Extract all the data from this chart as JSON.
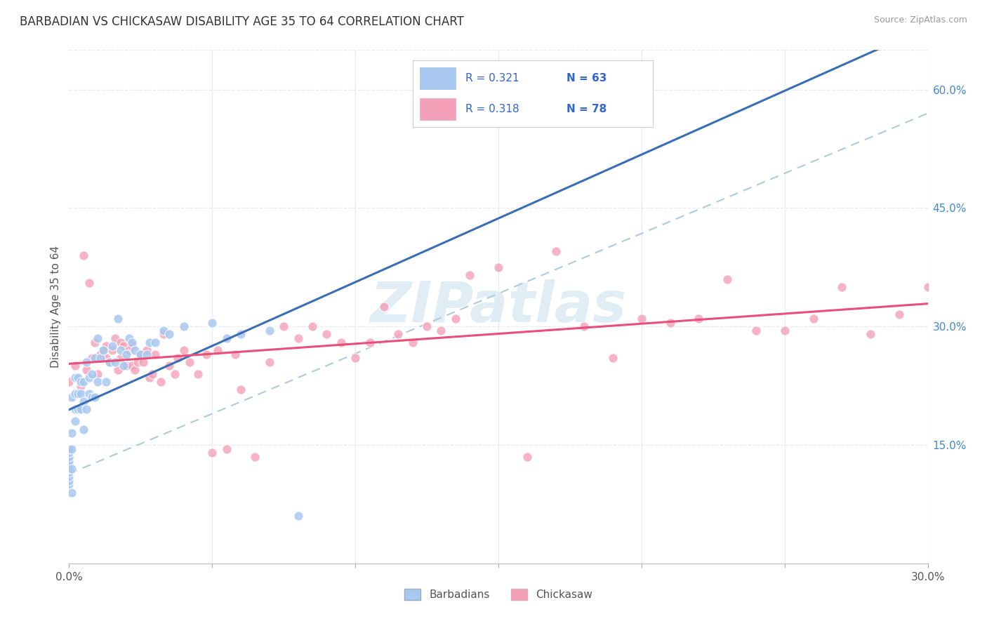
{
  "title": "BARBADIAN VS CHICKASAW DISABILITY AGE 35 TO 64 CORRELATION CHART",
  "source": "Source: ZipAtlas.com",
  "ylabel": "Disability Age 35 to 64",
  "xlim": [
    0.0,
    0.3
  ],
  "ylim": [
    0.0,
    0.65
  ],
  "x_ticks": [
    0.0,
    0.05,
    0.1,
    0.15,
    0.2,
    0.25,
    0.3
  ],
  "y_ticks_right": [
    0.15,
    0.3,
    0.45,
    0.6
  ],
  "barbadian_R": 0.321,
  "barbadian_N": 63,
  "chickasaw_R": 0.318,
  "chickasaw_N": 78,
  "barbadian_color": "#A8C8F0",
  "chickasaw_color": "#F4A0B8",
  "barbadian_line_color": "#3B6DB5",
  "chickasaw_line_color": "#E8507A",
  "dashed_line_color": "#AACCDD",
  "grid_color": "#E8EAF0",
  "watermark_text": "ZIPatlas",
  "watermark_color": "#D0E4F0",
  "bg_color": "#FFFFFF",
  "legend_text_color": "#3366CC",
  "barbadian_x": [
    0.0,
    0.0,
    0.0,
    0.0,
    0.0,
    0.0,
    0.0,
    0.0,
    0.0,
    0.0,
    0.001,
    0.001,
    0.001,
    0.001,
    0.001,
    0.002,
    0.002,
    0.002,
    0.002,
    0.003,
    0.003,
    0.003,
    0.004,
    0.004,
    0.004,
    0.005,
    0.005,
    0.005,
    0.006,
    0.006,
    0.007,
    0.007,
    0.008,
    0.008,
    0.009,
    0.009,
    0.01,
    0.01,
    0.011,
    0.012,
    0.013,
    0.014,
    0.015,
    0.016,
    0.017,
    0.018,
    0.019,
    0.02,
    0.021,
    0.022,
    0.023,
    0.025,
    0.027,
    0.028,
    0.03,
    0.033,
    0.035,
    0.04,
    0.05,
    0.055,
    0.06,
    0.07,
    0.08
  ],
  "barbadian_y": [
    0.1,
    0.105,
    0.11,
    0.115,
    0.12,
    0.125,
    0.13,
    0.135,
    0.14,
    0.145,
    0.09,
    0.12,
    0.145,
    0.165,
    0.21,
    0.18,
    0.195,
    0.215,
    0.235,
    0.195,
    0.215,
    0.235,
    0.195,
    0.215,
    0.23,
    0.17,
    0.205,
    0.23,
    0.195,
    0.255,
    0.215,
    0.235,
    0.21,
    0.24,
    0.21,
    0.26,
    0.23,
    0.285,
    0.26,
    0.27,
    0.23,
    0.255,
    0.275,
    0.255,
    0.31,
    0.27,
    0.25,
    0.265,
    0.285,
    0.28,
    0.27,
    0.265,
    0.265,
    0.28,
    0.28,
    0.295,
    0.29,
    0.3,
    0.305,
    0.285,
    0.29,
    0.295,
    0.06
  ],
  "chickasaw_x": [
    0.0,
    0.002,
    0.004,
    0.005,
    0.006,
    0.007,
    0.008,
    0.009,
    0.01,
    0.011,
    0.012,
    0.013,
    0.013,
    0.014,
    0.015,
    0.016,
    0.017,
    0.018,
    0.018,
    0.019,
    0.02,
    0.021,
    0.022,
    0.022,
    0.023,
    0.024,
    0.025,
    0.026,
    0.027,
    0.028,
    0.029,
    0.03,
    0.032,
    0.033,
    0.035,
    0.037,
    0.038,
    0.04,
    0.042,
    0.045,
    0.048,
    0.05,
    0.052,
    0.055,
    0.058,
    0.06,
    0.065,
    0.07,
    0.075,
    0.08,
    0.085,
    0.09,
    0.095,
    0.1,
    0.105,
    0.11,
    0.115,
    0.12,
    0.125,
    0.13,
    0.135,
    0.14,
    0.15,
    0.16,
    0.17,
    0.18,
    0.19,
    0.2,
    0.21,
    0.22,
    0.23,
    0.24,
    0.25,
    0.26,
    0.27,
    0.28,
    0.29,
    0.3
  ],
  "chickasaw_y": [
    0.23,
    0.25,
    0.225,
    0.39,
    0.245,
    0.355,
    0.26,
    0.28,
    0.24,
    0.265,
    0.27,
    0.275,
    0.26,
    0.255,
    0.27,
    0.285,
    0.245,
    0.28,
    0.26,
    0.275,
    0.25,
    0.27,
    0.275,
    0.25,
    0.245,
    0.255,
    0.265,
    0.255,
    0.27,
    0.235,
    0.24,
    0.265,
    0.23,
    0.29,
    0.25,
    0.24,
    0.26,
    0.27,
    0.255,
    0.24,
    0.265,
    0.14,
    0.27,
    0.145,
    0.265,
    0.22,
    0.135,
    0.255,
    0.3,
    0.285,
    0.3,
    0.29,
    0.28,
    0.26,
    0.28,
    0.325,
    0.29,
    0.28,
    0.3,
    0.295,
    0.31,
    0.365,
    0.375,
    0.135,
    0.395,
    0.3,
    0.26,
    0.31,
    0.305,
    0.31,
    0.36,
    0.295,
    0.295,
    0.31,
    0.35,
    0.29,
    0.315,
    0.35
  ]
}
